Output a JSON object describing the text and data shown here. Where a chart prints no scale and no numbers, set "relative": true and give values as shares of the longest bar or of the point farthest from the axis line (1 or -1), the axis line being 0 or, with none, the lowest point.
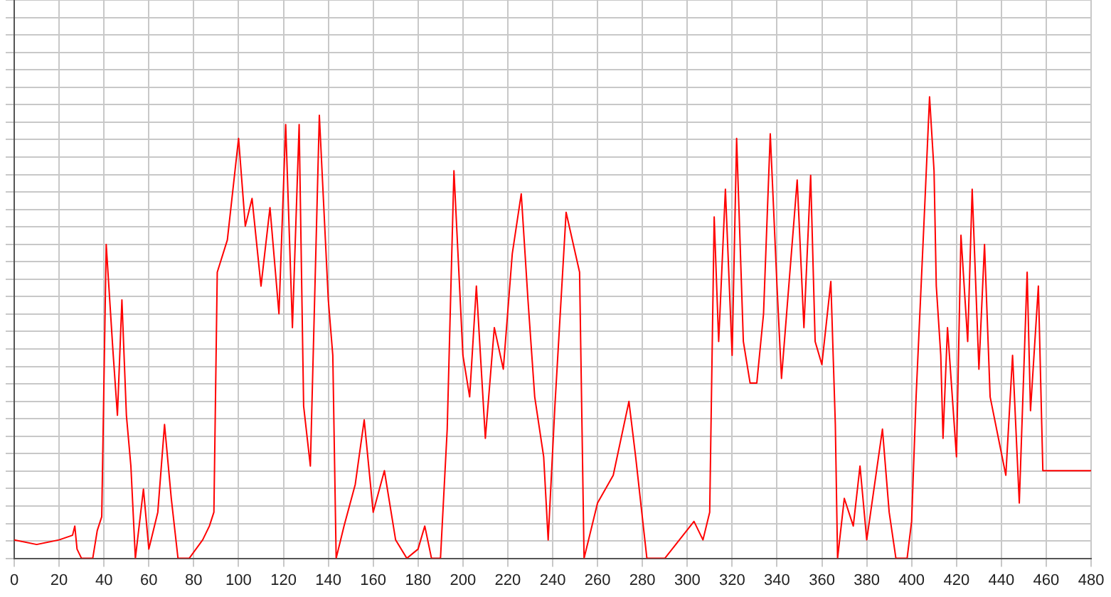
{
  "chart_data": {
    "type": "line",
    "relative": true,
    "grid": true,
    "marker": "none",
    "line_style": "solid",
    "legend": false,
    "xlim": [
      0,
      480
    ],
    "xticks": [
      0,
      20,
      40,
      60,
      80,
      100,
      120,
      140,
      160,
      180,
      200,
      220,
      240,
      260,
      280,
      300,
      320,
      340,
      360,
      380,
      400,
      420,
      440,
      460,
      480
    ],
    "series": [
      {
        "color": "#ff0000",
        "x": [
          0,
          10,
          20,
          26,
          27,
          28,
          30,
          35,
          37,
          39,
          41,
          44,
          46,
          48,
          50,
          52,
          54,
          57.6,
          60,
          64,
          67,
          70,
          73,
          78,
          84,
          87,
          89,
          90.5,
          95,
          100,
          103,
          106,
          110,
          114,
          118,
          121,
          124,
          127,
          129,
          132,
          136,
          140,
          142,
          143.5,
          147,
          152,
          156,
          160,
          165,
          170,
          175,
          180,
          183,
          186,
          190,
          193,
          196,
          200,
          203,
          206,
          210,
          214,
          218,
          222,
          226,
          229,
          232,
          236,
          238,
          241,
          246,
          252,
          254,
          260,
          267,
          274,
          277,
          282,
          290,
          303,
          307,
          310,
          312,
          314,
          317,
          320,
          322,
          325,
          328,
          331,
          334,
          337,
          340,
          342,
          349,
          352,
          355,
          357,
          360,
          364,
          366,
          367,
          370,
          374,
          377,
          380,
          387,
          390,
          393,
          398,
          400,
          402,
          406,
          408,
          410,
          411,
          413,
          414,
          416,
          420,
          422,
          425,
          427,
          430,
          432.5,
          435,
          442,
          445,
          448,
          451.5,
          453,
          456.5,
          458,
          458.5,
          470,
          480
        ],
        "values": [
          0.04,
          0.03,
          0.04,
          0.05,
          0.07,
          0.02,
          0,
          0,
          0.06,
          0.09,
          0.68,
          0.45,
          0.31,
          0.56,
          0.31,
          0.2,
          0,
          0.15,
          0.02,
          0.1,
          0.29,
          0.13,
          0,
          0,
          0.04,
          0.07,
          0.1,
          0.62,
          0.69,
          0.91,
          0.72,
          0.78,
          0.59,
          0.76,
          0.53,
          0.94,
          0.5,
          0.94,
          0.33,
          0.2,
          0.96,
          0.56,
          0.44,
          0,
          0.07,
          0.16,
          0.3,
          0.1,
          0.19,
          0.04,
          0,
          0.02,
          0.07,
          0,
          0,
          0.28,
          0.84,
          0.44,
          0.35,
          0.59,
          0.26,
          0.5,
          0.41,
          0.66,
          0.79,
          0.56,
          0.35,
          0.22,
          0.04,
          0.33,
          0.75,
          0.62,
          0,
          0.12,
          0.18,
          0.34,
          0.22,
          0,
          0,
          0.08,
          0.04,
          0.1,
          0.74,
          0.47,
          0.8,
          0.44,
          0.91,
          0.47,
          0.38,
          0.38,
          0.53,
          0.92,
          0.59,
          0.39,
          0.82,
          0.5,
          0.83,
          0.47,
          0.42,
          0.6,
          0.29,
          0,
          0.13,
          0.07,
          0.2,
          0.04,
          0.28,
          0.1,
          0,
          0,
          0.08,
          0.35,
          0.78,
          1,
          0.84,
          0.59,
          0.44,
          0.26,
          0.5,
          0.22,
          0.7,
          0.47,
          0.8,
          0.41,
          0.68,
          0.35,
          0.18,
          0.44,
          0.12,
          0.62,
          0.32,
          0.59,
          0.29,
          0.19,
          0.19,
          0.19
        ]
      }
    ]
  }
}
